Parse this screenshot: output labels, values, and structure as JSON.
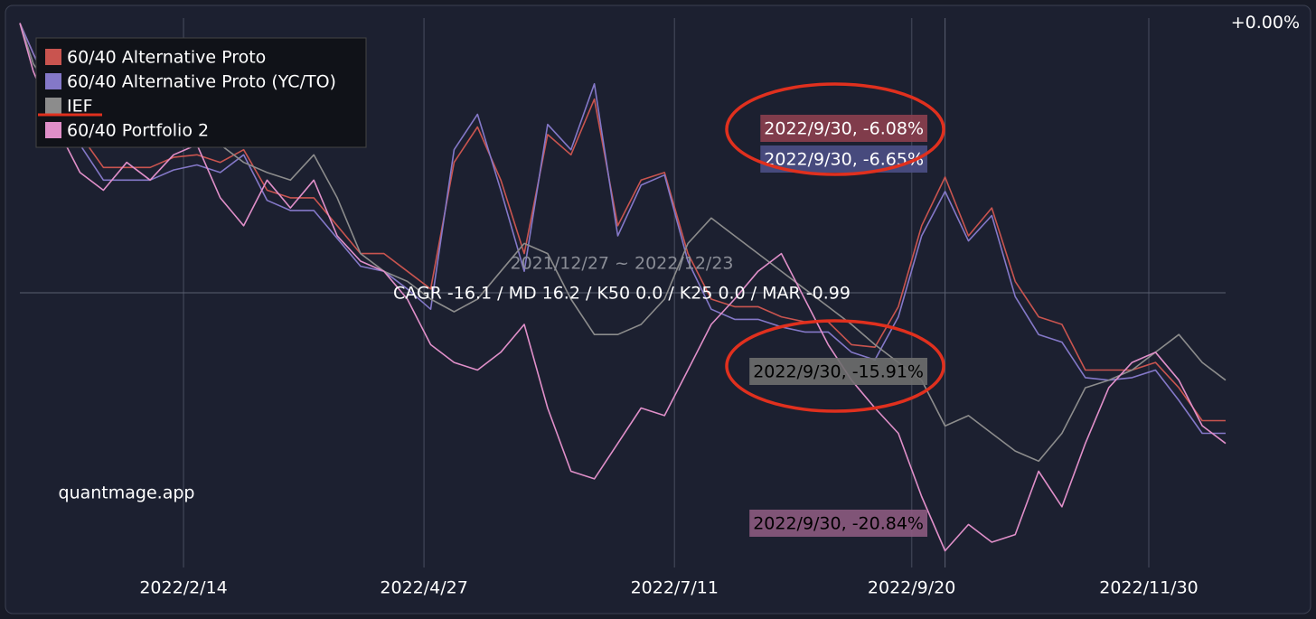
{
  "chart_data": {
    "type": "line",
    "subtitle": "2021/12/27 ~ 2022/12/23",
    "stats": "CAGR -16.1 / MD 16.2 / K50 0.0 / K25 0.0 / MAR -0.99",
    "watermark": "quantmage.app",
    "x": [
      "2021/12/27",
      "2021/12/31",
      "2022/1/7",
      "2022/1/14",
      "2022/1/21",
      "2022/1/28",
      "2022/2/4",
      "2022/2/11",
      "2022/2/18",
      "2022/2/25",
      "2022/3/4",
      "2022/3/11",
      "2022/3/18",
      "2022/3/25",
      "2022/4/1",
      "2022/4/8",
      "2022/4/15",
      "2022/4/22",
      "2022/4/29",
      "2022/5/6",
      "2022/5/13",
      "2022/5/20",
      "2022/5/27",
      "2022/6/3",
      "2022/6/10",
      "2022/6/17",
      "2022/6/24",
      "2022/7/1",
      "2022/7/8",
      "2022/7/15",
      "2022/7/22",
      "2022/7/29",
      "2022/8/5",
      "2022/8/12",
      "2022/8/19",
      "2022/8/26",
      "2022/9/2",
      "2022/9/9",
      "2022/9/16",
      "2022/9/23",
      "2022/9/30",
      "2022/10/7",
      "2022/10/14",
      "2022/10/21",
      "2022/10/28",
      "2022/11/4",
      "2022/11/11",
      "2022/11/18",
      "2022/11/25",
      "2022/12/2",
      "2022/12/9",
      "2022/12/16",
      "2022/12/23"
    ],
    "xlim": [
      "2021/12/27",
      "2022/12/23"
    ],
    "xticks": [
      "2022/2/14",
      "2022/4/27",
      "2022/7/11",
      "2022/9/20",
      "2022/11/30"
    ],
    "ylim": [
      -21.5,
      0.2
    ],
    "yticks": [
      {
        "value": 0,
        "label": "+0.00%"
      }
    ],
    "grid": true,
    "legend": "top-left",
    "series": [
      {
        "name": "60/40 Alternative Proto",
        "color": "#c9544f",
        "values": [
          0,
          -1.2,
          -3.0,
          -4.4,
          -5.7,
          -5.7,
          -5.7,
          -5.3,
          -5.2,
          -5.5,
          -5.0,
          -6.6,
          -6.9,
          -6.9,
          -8.0,
          -9.1,
          -9.1,
          -9.8,
          -10.5,
          -5.5,
          -4.1,
          -6.2,
          -9.1,
          -4.4,
          -5.2,
          -3.0,
          -8.0,
          -6.2,
          -5.9,
          -9.1,
          -10.9,
          -11.2,
          -11.2,
          -11.6,
          -11.8,
          -11.8,
          -12.7,
          -12.8,
          -11.2,
          -8.0,
          -6.08,
          -8.4,
          -7.3,
          -10.2,
          -11.6,
          -11.9,
          -13.7,
          -13.7,
          -13.7,
          -13.4,
          -14.4,
          -15.7,
          -15.7
        ],
        "value_labels": [
          null,
          null,
          null,
          null,
          null,
          null,
          null,
          null,
          null,
          null,
          null,
          null,
          null,
          null,
          null,
          null,
          null,
          null,
          null,
          null,
          null,
          null,
          null,
          null,
          null,
          null,
          null,
          null,
          null,
          null,
          null,
          null,
          null,
          null,
          null,
          null,
          null,
          null,
          null,
          null,
          "2022/9/30, -6.08%",
          null,
          null,
          null,
          null,
          null,
          null,
          null,
          null,
          null,
          null,
          null,
          null
        ]
      },
      {
        "name": "60/40 Alternative Proto (YC/TO)",
        "color": "#8478c8",
        "values": [
          0,
          -1.2,
          -3.2,
          -4.8,
          -6.2,
          -6.2,
          -6.2,
          -5.8,
          -5.6,
          -5.9,
          -5.2,
          -7.0,
          -7.4,
          -7.4,
          -8.5,
          -9.6,
          -9.8,
          -10.5,
          -11.3,
          -5.0,
          -3.6,
          -6.6,
          -9.8,
          -4.0,
          -5.0,
          -2.4,
          -8.4,
          -6.4,
          -6.0,
          -9.4,
          -11.3,
          -11.7,
          -11.7,
          -12.0,
          -12.2,
          -12.2,
          -13.0,
          -13.3,
          -11.6,
          -8.4,
          -6.65,
          -8.6,
          -7.6,
          -10.8,
          -12.3,
          -12.6,
          -14.0,
          -14.1,
          -14.0,
          -13.7,
          -14.9,
          -16.2,
          -16.2
        ],
        "value_labels": [
          null,
          null,
          null,
          null,
          null,
          null,
          null,
          null,
          null,
          null,
          null,
          null,
          null,
          null,
          null,
          null,
          null,
          null,
          null,
          null,
          null,
          null,
          null,
          null,
          null,
          null,
          null,
          null,
          null,
          null,
          null,
          null,
          null,
          null,
          null,
          null,
          null,
          null,
          null,
          null,
          "2022/9/30, -6.65%",
          null,
          null,
          null,
          null,
          null,
          null,
          null,
          null,
          null,
          null,
          null,
          null
        ]
      },
      {
        "name": "IEF",
        "color": "#8c8c8c",
        "values": [
          0,
          -1.6,
          -3.0,
          -3.4,
          -3.7,
          -4.4,
          -4.4,
          -4.1,
          -4.4,
          -4.8,
          -5.5,
          -5.9,
          -6.2,
          -5.2,
          -6.9,
          -9.1,
          -9.8,
          -10.2,
          -10.9,
          -11.4,
          -10.9,
          -9.8,
          -8.7,
          -9.1,
          -10.9,
          -12.3,
          -12.3,
          -11.9,
          -10.9,
          -8.7,
          -7.7,
          -8.4,
          -9.1,
          -9.8,
          -10.5,
          -11.2,
          -11.9,
          -12.7,
          -13.4,
          -14.1,
          -15.91,
          -15.5,
          -16.2,
          -16.9,
          -17.3,
          -16.2,
          -14.4,
          -14.1,
          -13.7,
          -13.0,
          -12.3,
          -13.4,
          -14.1
        ],
        "value_labels": [
          null,
          null,
          null,
          null,
          null,
          null,
          null,
          null,
          null,
          null,
          null,
          null,
          null,
          null,
          null,
          null,
          null,
          null,
          null,
          null,
          null,
          null,
          null,
          null,
          null,
          null,
          null,
          null,
          null,
          null,
          null,
          null,
          null,
          null,
          null,
          null,
          null,
          null,
          null,
          null,
          "2022/9/30, -15.91%",
          null,
          null,
          null,
          null,
          null,
          null,
          null,
          null,
          null,
          null,
          null,
          null
        ]
      },
      {
        "name": "60/40 Portfolio 2",
        "color": "#e08fc9",
        "values": [
          0,
          -1.9,
          -4.1,
          -5.9,
          -6.6,
          -5.5,
          -6.2,
          -5.2,
          -4.8,
          -6.9,
          -8.0,
          -6.2,
          -7.3,
          -6.2,
          -8.4,
          -9.4,
          -9.8,
          -10.9,
          -12.7,
          -13.4,
          -13.7,
          -13.0,
          -11.9,
          -15.2,
          -17.7,
          -18.0,
          -16.6,
          -15.2,
          -15.5,
          -13.7,
          -11.9,
          -10.9,
          -9.8,
          -9.1,
          -10.9,
          -12.7,
          -14.1,
          -15.2,
          -16.2,
          -18.7,
          -20.84,
          -19.8,
          -20.5,
          -20.2,
          -17.7,
          -19.1,
          -16.6,
          -14.4,
          -13.4,
          -13.0,
          -14.1,
          -15.9,
          -16.6
        ],
        "value_labels": [
          null,
          null,
          null,
          null,
          null,
          null,
          null,
          null,
          null,
          null,
          null,
          null,
          null,
          null,
          null,
          null,
          null,
          null,
          null,
          null,
          null,
          null,
          null,
          null,
          null,
          null,
          null,
          null,
          null,
          null,
          null,
          null,
          null,
          null,
          null,
          null,
          null,
          null,
          null,
          null,
          "2022/9/30, -20.84%",
          null,
          null,
          null,
          null,
          null,
          null,
          null,
          null,
          null,
          null,
          null,
          null
        ]
      }
    ]
  }
}
